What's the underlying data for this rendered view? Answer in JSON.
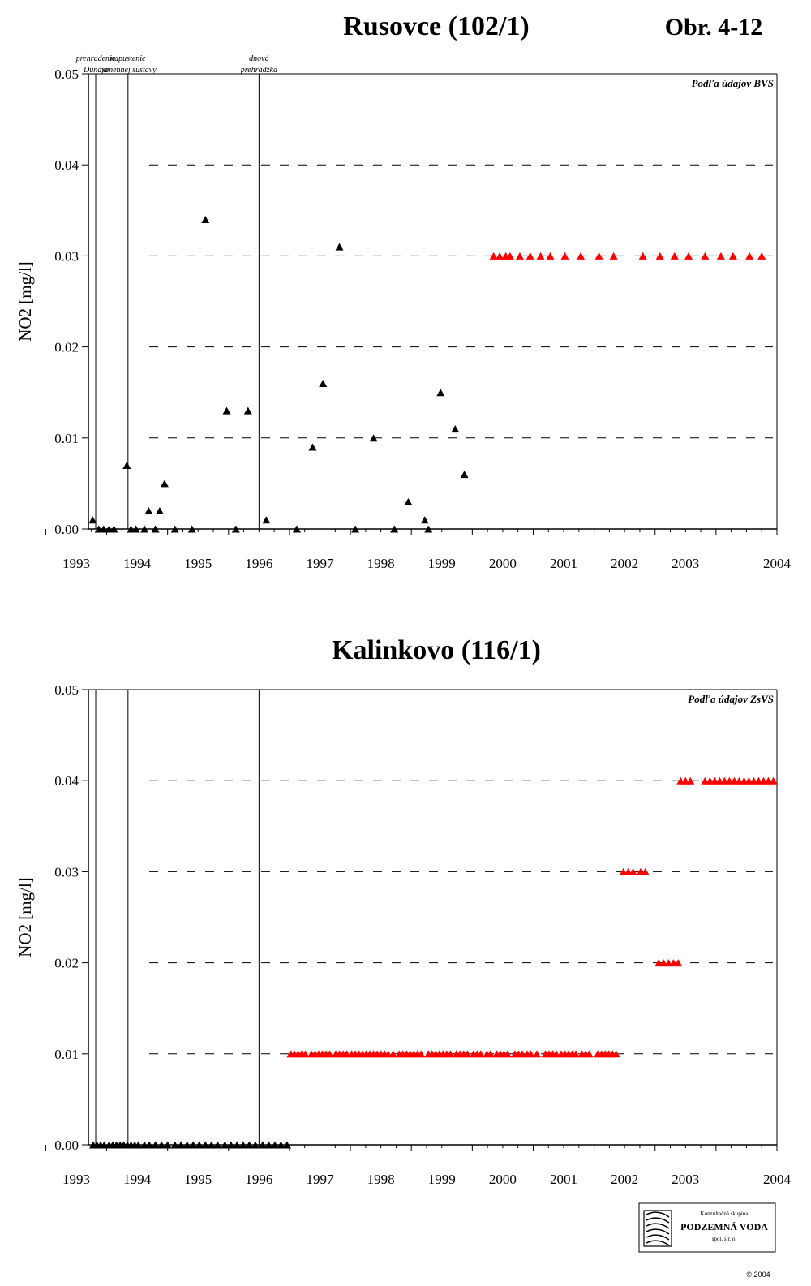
{
  "figure_label": "Obr. 4-12",
  "events": [
    {
      "label1": "prehradenie",
      "label2": "Dunaja",
      "date": 1992.82
    },
    {
      "label1": "napustenie",
      "label2": "ramennej sústavy",
      "date": 1993.35
    },
    {
      "label1": "dnová",
      "label2": "prehrádzka",
      "date": 1995.5
    }
  ],
  "logo": {
    "line1": "Konzultačná skupina",
    "line2": "PODZEMNÁ VODA",
    "line3": "spol. s r. o.",
    "copyright": "© 2004"
  },
  "colors": {
    "black_series": "#000000",
    "red_series": "#ff0000",
    "grid": "#000000"
  },
  "chart_data": [
    {
      "type": "scatter",
      "title": "Rusovce (102/1)",
      "ylabel": "NO2 [mg/l]",
      "xlabel": "",
      "source_note": "Podľa údajov BVS",
      "xlim": [
        1992.7,
        2004.0
      ],
      "ylim": [
        0.0,
        0.05
      ],
      "xticks": [
        1993,
        1994,
        1995,
        1996,
        1997,
        1998,
        1999,
        2000,
        2001,
        2002,
        2003,
        2004
      ],
      "yticks": [
        0.0,
        0.01,
        0.02,
        0.03,
        0.04,
        0.05
      ],
      "ytick_labels": [
        "0.00",
        "0.01",
        "0.02",
        "0.03",
        "0.04",
        "0.05"
      ],
      "grid": "horizontal-dashed",
      "series": [
        {
          "color": "#000000",
          "points": [
            [
              1992.77,
              0.001
            ],
            [
              1992.87,
              0.0
            ],
            [
              1992.95,
              0.0
            ],
            [
              1993.04,
              0.0
            ],
            [
              1993.12,
              0.0
            ],
            [
              1993.33,
              0.007
            ],
            [
              1993.4,
              0.0
            ],
            [
              1993.48,
              0.0
            ],
            [
              1993.62,
              0.0
            ],
            [
              1993.69,
              0.002
            ],
            [
              1993.8,
              0.0
            ],
            [
              1993.87,
              0.002
            ],
            [
              1993.95,
              0.005
            ],
            [
              1994.12,
              0.0
            ],
            [
              1994.4,
              0.0
            ],
            [
              1994.62,
              0.034
            ],
            [
              1994.97,
              0.013
            ],
            [
              1995.12,
              0.0
            ],
            [
              1995.32,
              0.013
            ],
            [
              1995.62,
              0.001
            ],
            [
              1996.12,
              0.0
            ],
            [
              1996.38,
              0.009
            ],
            [
              1996.55,
              0.016
            ],
            [
              1996.82,
              0.031
            ],
            [
              1997.08,
              0.0
            ],
            [
              1997.38,
              0.01
            ],
            [
              1997.72,
              0.0
            ],
            [
              1997.95,
              0.003
            ],
            [
              1998.22,
              0.001
            ],
            [
              1998.28,
              0.0
            ],
            [
              1998.48,
              0.015
            ],
            [
              1998.72,
              0.011
            ],
            [
              1998.87,
              0.006
            ]
          ]
        },
        {
          "color": "#ff0000",
          "points": [
            [
              1999.35,
              0.03
            ],
            [
              1999.45,
              0.03
            ],
            [
              1999.55,
              0.03
            ],
            [
              1999.62,
              0.03
            ],
            [
              1999.78,
              0.03
            ],
            [
              1999.95,
              0.03
            ],
            [
              2000.12,
              0.03
            ],
            [
              2000.28,
              0.03
            ],
            [
              2000.52,
              0.03
            ],
            [
              2000.78,
              0.03
            ],
            [
              2001.08,
              0.03
            ],
            [
              2001.32,
              0.03
            ],
            [
              2001.8,
              0.03
            ],
            [
              2002.08,
              0.03
            ],
            [
              2002.32,
              0.03
            ],
            [
              2002.55,
              0.03
            ],
            [
              2002.82,
              0.03
            ],
            [
              2003.08,
              0.03
            ],
            [
              2003.28,
              0.03
            ],
            [
              2003.55,
              0.03
            ],
            [
              2003.75,
              0.03
            ]
          ]
        }
      ]
    },
    {
      "type": "scatter",
      "title": "Kalinkovo (116/1)",
      "ylabel": "NO2 [mg/l]",
      "xlabel": "",
      "source_note": "Podľa údajov ZsVS",
      "xlim": [
        1992.7,
        2004.0
      ],
      "ylim": [
        0.0,
        0.05
      ],
      "xticks": [
        1993,
        1994,
        1995,
        1996,
        1997,
        1998,
        1999,
        2000,
        2001,
        2002,
        2003,
        2004
      ],
      "yticks": [
        0.0,
        0.01,
        0.02,
        0.03,
        0.04,
        0.05
      ],
      "ytick_labels": [
        "0.00",
        "0.01",
        "0.02",
        "0.03",
        "0.04",
        "0.05"
      ],
      "grid": "horizontal-dashed",
      "series": [
        {
          "color": "#000000",
          "y": 0.0,
          "x": [
            1992.78,
            1992.84,
            1992.9,
            1992.96,
            1993.04,
            1993.1,
            1993.16,
            1993.22,
            1993.28,
            1993.34,
            1993.4,
            1993.46,
            1993.52,
            1993.62,
            1993.7,
            1993.8,
            1993.9,
            1994.0,
            1994.12,
            1994.22,
            1994.32,
            1994.42,
            1994.52,
            1994.62,
            1994.72,
            1994.82,
            1994.94,
            1995.04,
            1995.14,
            1995.24,
            1995.34,
            1995.44,
            1995.56,
            1995.66,
            1995.76,
            1995.86,
            1995.96
          ]
        },
        {
          "color": "#ff0000",
          "y": 0.01,
          "x": [
            1996.02,
            1996.08,
            1996.14,
            1996.2,
            1996.26,
            1996.36,
            1996.42,
            1996.48,
            1996.54,
            1996.6,
            1996.66,
            1996.76,
            1996.82,
            1996.88,
            1996.94,
            1997.02,
            1997.08,
            1997.14,
            1997.2,
            1997.26,
            1997.32,
            1997.38,
            1997.44,
            1997.5,
            1997.56,
            1997.62,
            1997.7,
            1997.8,
            1997.86,
            1997.92,
            1997.98,
            1998.04,
            1998.1,
            1998.16,
            1998.28,
            1998.34,
            1998.4,
            1998.46,
            1998.52,
            1998.58,
            1998.64,
            1998.74,
            1998.8,
            1998.86,
            1998.92,
            1999.02,
            1999.08,
            1999.14,
            1999.24,
            1999.3,
            1999.4,
            1999.46,
            1999.52,
            1999.58,
            1999.7,
            1999.76,
            1999.82,
            1999.9,
            1999.96,
            2000.06,
            2000.2,
            2000.26,
            2000.32,
            2000.38,
            2000.46,
            2000.52,
            2000.58,
            2000.64,
            2000.7,
            2000.8,
            2000.86,
            2000.92,
            2001.06,
            2001.12,
            2001.18,
            2001.24,
            2001.3,
            2001.36
          ]
        },
        {
          "color": "#ff0000",
          "y": 0.03,
          "x": [
            2001.48,
            2001.56,
            2001.64,
            2001.76,
            2001.84
          ]
        },
        {
          "color": "#ff0000",
          "y": 0.02,
          "x": [
            2002.06,
            2002.14,
            2002.22,
            2002.3,
            2002.38
          ]
        },
        {
          "color": "#ff0000",
          "y": 0.04,
          "x": [
            2002.42,
            2002.5,
            2002.58,
            2002.82,
            2002.9,
            2002.98,
            2003.06,
            2003.14,
            2003.22,
            2003.3,
            2003.38,
            2003.46,
            2003.54,
            2003.62,
            2003.7,
            2003.78,
            2003.86,
            2003.94
          ]
        }
      ]
    }
  ]
}
